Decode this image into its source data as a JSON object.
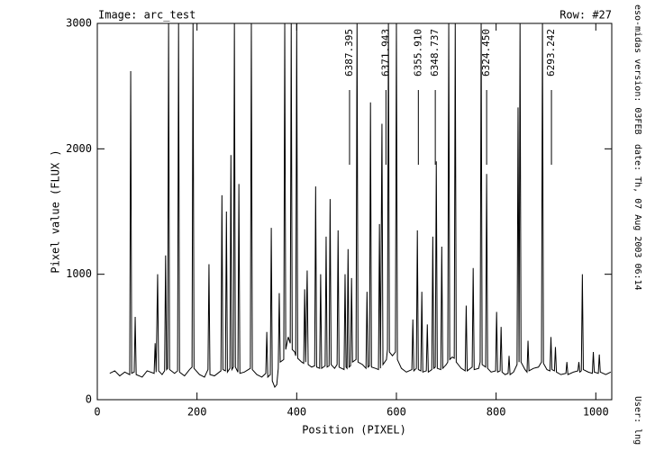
{
  "chart_data": {
    "type": "line",
    "image_label": "Image: arc_test",
    "row_label": "Row: #27",
    "x_label": "Position (PIXEL)",
    "y_label": "Pixel value (FLUX )",
    "info": [
      "eso-midas version: 03FEB",
      "date: Th, 07 Aug 2003 06:14",
      "User: lng"
    ],
    "xlim": [
      0,
      1032
    ],
    "ylim": [
      0,
      3000
    ],
    "xticks": [
      0,
      200,
      400,
      600,
      800,
      1000
    ],
    "yticks": [
      0,
      1000,
      2000,
      3000
    ],
    "annotations": [
      {
        "text": "6387.395",
        "x": 506
      },
      {
        "text": "6371.943",
        "x": 579
      },
      {
        "text": "6355.910",
        "x": 644
      },
      {
        "text": "6348.737",
        "x": 678
      },
      {
        "text": "6324.450",
        "x": 781
      },
      {
        "text": "6293.242",
        "x": 911
      }
    ],
    "x": [
      25,
      35,
      45,
      55,
      65,
      67,
      69,
      74,
      76,
      78,
      90,
      100,
      114,
      116,
      118,
      121,
      123,
      130,
      135,
      137,
      139,
      141,
      143,
      145,
      155,
      161,
      163,
      165,
      175,
      185,
      190,
      192,
      194,
      205,
      215,
      222,
      224,
      226,
      235,
      248,
      250,
      252,
      257,
      259,
      261,
      266,
      268,
      270,
      273,
      275,
      277,
      282,
      284,
      286,
      295,
      307,
      309,
      311,
      320,
      330,
      338,
      340,
      342,
      347,
      349,
      351,
      356,
      360,
      363,
      365,
      367,
      374,
      376,
      378,
      383,
      387,
      389,
      391,
      396,
      398,
      400,
      402,
      410,
      414,
      416,
      418,
      421,
      423,
      430,
      436,
      438,
      440,
      446,
      448,
      450,
      457,
      459,
      461,
      465,
      467,
      469,
      476,
      481,
      483,
      485,
      495,
      497,
      499,
      501,
      503,
      505,
      508,
      510,
      512,
      519,
      521,
      523,
      532,
      539,
      541,
      543,
      546,
      548,
      550,
      558,
      564,
      566,
      568,
      571,
      573,
      580,
      582,
      584,
      586,
      592,
      598,
      600,
      602,
      610,
      620,
      631,
      633,
      635,
      640,
      642,
      644,
      649,
      651,
      653,
      660,
      662,
      664,
      671,
      673,
      675,
      678,
      680,
      682,
      689,
      691,
      693,
      700,
      703,
      705,
      707,
      712,
      716,
      718,
      720,
      730,
      738,
      740,
      742,
      752,
      754,
      756,
      765,
      768,
      770,
      772,
      779,
      781,
      783,
      790,
      799,
      801,
      803,
      808,
      810,
      812,
      818,
      824,
      826,
      828,
      835,
      842,
      844,
      846,
      848,
      850,
      858,
      862,
      864,
      866,
      875,
      885,
      891,
      893,
      895,
      902,
      908,
      910,
      912,
      917,
      919,
      921,
      930,
      940,
      942,
      944,
      955,
      964,
      966,
      968,
      971,
      973,
      975,
      985,
      993,
      995,
      997,
      1005,
      1007,
      1009,
      1020,
      1030
    ],
    "series": [
      {
        "color": "#000000",
        "values": [
          210,
          230,
          190,
          220,
          200,
          2620,
          210,
          220,
          660,
          200,
          180,
          230,
          210,
          450,
          220,
          1000,
          230,
          200,
          230,
          1150,
          240,
          250,
          3000,
          240,
          210,
          230,
          3000,
          220,
          190,
          240,
          260,
          3000,
          250,
          200,
          180,
          240,
          1080,
          200,
          190,
          230,
          1630,
          240,
          230,
          1500,
          220,
          250,
          1950,
          240,
          260,
          3000,
          260,
          220,
          1720,
          210,
          220,
          250,
          3000,
          240,
          200,
          180,
          210,
          540,
          180,
          200,
          1370,
          150,
          100,
          120,
          250,
          850,
          300,
          320,
          3000,
          400,
          500,
          450,
          3000,
          400,
          380,
          350,
          3000,
          330,
          300,
          290,
          880,
          300,
          1030,
          280,
          260,
          270,
          1700,
          260,
          250,
          1000,
          250,
          270,
          1300,
          260,
          270,
          1600,
          280,
          250,
          280,
          1350,
          260,
          240,
          1000,
          260,
          250,
          1200,
          260,
          270,
          970,
          300,
          320,
          3000,
          300,
          280,
          250,
          860,
          260,
          270,
          2370,
          260,
          250,
          240,
          1400,
          250,
          2200,
          280,
          320,
          400,
          3000,
          380,
          350,
          380,
          3000,
          320,
          250,
          220,
          240,
          640,
          230,
          250,
          1350,
          240,
          230,
          860,
          220,
          230,
          600,
          220,
          240,
          1300,
          250,
          260,
          1900,
          250,
          240,
          1220,
          250,
          280,
          300,
          3000,
          320,
          340,
          330,
          3000,
          300,
          250,
          230,
          750,
          230,
          260,
          1050,
          240,
          250,
          300,
          3000,
          280,
          260,
          1800,
          250,
          220,
          230,
          700,
          220,
          230,
          580,
          220,
          200,
          210,
          350,
          200,
          220,
          280,
          2330,
          300,
          3000,
          300,
          240,
          220,
          470,
          230,
          250,
          260,
          300,
          3000,
          290,
          240,
          230,
          500,
          240,
          230,
          420,
          220,
          200,
          210,
          300,
          200,
          220,
          230,
          300,
          220,
          230,
          1000,
          240,
          220,
          210,
          380,
          220,
          210,
          360,
          220,
          200,
          220
        ]
      }
    ]
  }
}
